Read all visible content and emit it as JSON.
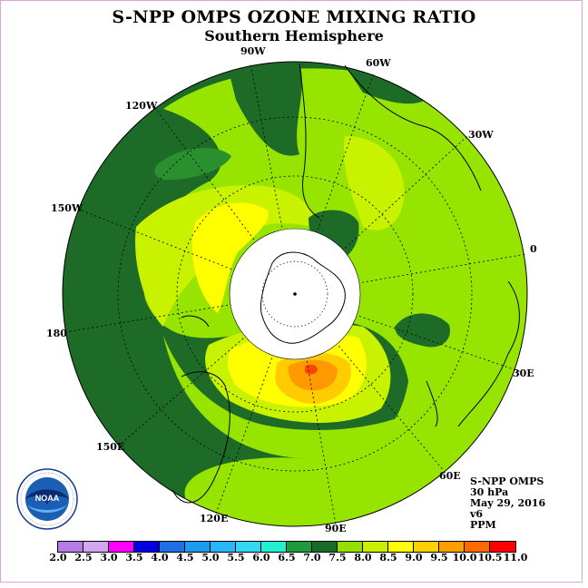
{
  "header": {
    "title": "S-NPP OMPS OZONE MIXING RATIO",
    "subtitle": "Southern Hemisphere"
  },
  "map": {
    "longitude_labels": [
      "90W",
      "60W",
      "30W",
      "0",
      "30E",
      "60E",
      "90E",
      "120E",
      "150E",
      "180",
      "150W",
      "120W"
    ],
    "center_mask_color": "#ffffff",
    "features": [
      {
        "name": "Antarctica",
        "type": "landmass outline"
      },
      {
        "name": "South America",
        "type": "landmass outline"
      },
      {
        "name": "Africa",
        "type": "landmass outline"
      },
      {
        "name": "Australia",
        "type": "landmass outline"
      }
    ]
  },
  "info": {
    "instrument": "S-NPP OMPS",
    "level": "30 hPa",
    "date": "May 29, 2016",
    "version": "v6",
    "units": "PPM"
  },
  "logo": {
    "text": "NOAA",
    "ring_text": "NATIONAL OCEANIC AND ATMOSPHERIC ADMINISTRATION · U.S. DEPARTMENT OF COMMERCE"
  },
  "colorbar": {
    "labels": [
      "2.0",
      "2.5",
      "3.0",
      "3.5",
      "4.0",
      "4.5",
      "5.0",
      "5.5",
      "6.0",
      "6.5",
      "7.0",
      "7.5",
      "8.0",
      "8.5",
      "9.0",
      "9.5",
      "10.0",
      "10.5",
      "11.0"
    ],
    "colors": [
      "#b57ce8",
      "#d2a6f0",
      "#ff00ff",
      "#0000e0",
      "#1e6fe6",
      "#1e9bf0",
      "#29b6f6",
      "#33d6f5",
      "#22f0d0",
      "#1f9a3c",
      "#176c27",
      "#93e000",
      "#c8f000",
      "#ffff00",
      "#ffd000",
      "#ffa000",
      "#ff6a00",
      "#ff0000",
      "#8b5a3c"
    ]
  },
  "colors": {
    "dark_green": "#1e6b28",
    "mid_green": "#2a8f2e",
    "light_green": "#97e400",
    "yellow_green": "#c9f200",
    "yellow": "#ffff00",
    "gold": "#ffcc00",
    "orange": "#ff9900",
    "red": "#ff4400"
  }
}
